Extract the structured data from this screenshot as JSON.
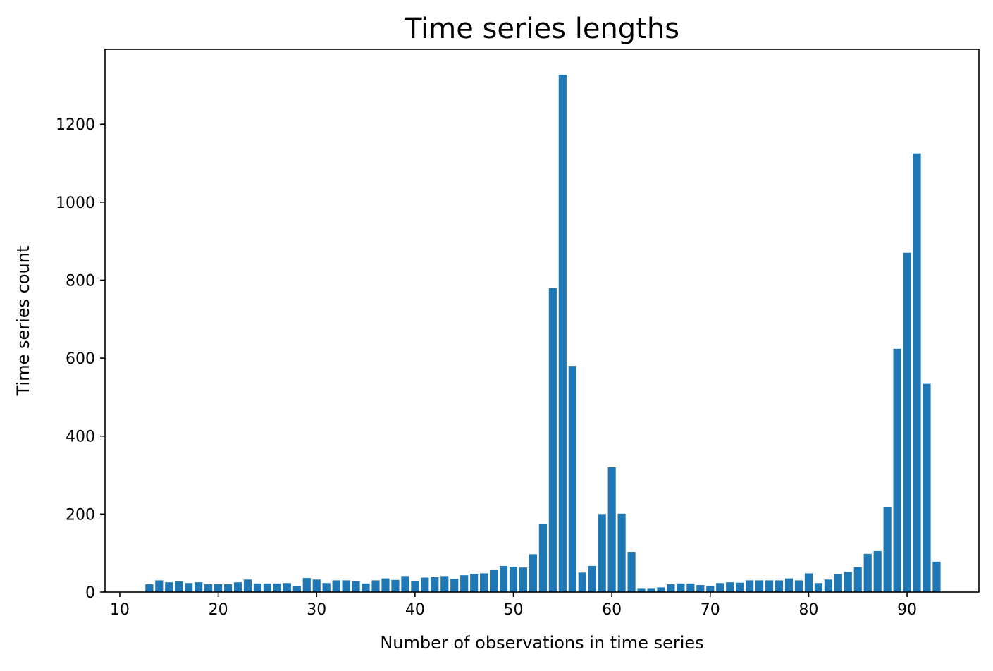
{
  "chart_data": {
    "type": "bar",
    "title": "Time series lengths",
    "xlabel": "Number of observations in time series",
    "ylabel": "Time series count",
    "xlim": [
      8.5,
      97.3
    ],
    "ylim": [
      0,
      1392
    ],
    "xticks": [
      10,
      20,
      30,
      40,
      50,
      60,
      70,
      80,
      90
    ],
    "yticks": [
      0,
      200,
      400,
      600,
      800,
      1000,
      1200
    ],
    "grid": false,
    "bar_color": "#1f77b4",
    "x": [
      13,
      14,
      15,
      16,
      17,
      18,
      19,
      20,
      21,
      22,
      23,
      24,
      25,
      26,
      27,
      28,
      29,
      30,
      31,
      32,
      33,
      34,
      35,
      36,
      37,
      38,
      39,
      40,
      41,
      42,
      43,
      44,
      45,
      46,
      47,
      48,
      49,
      50,
      51,
      52,
      53,
      54,
      55,
      56,
      57,
      58,
      59,
      60,
      61,
      62,
      63,
      64,
      65,
      66,
      67,
      68,
      69,
      70,
      71,
      72,
      73,
      74,
      75,
      76,
      77,
      78,
      79,
      80,
      81,
      82,
      83,
      84,
      85,
      86,
      87,
      88,
      89,
      90,
      91,
      92,
      93
    ],
    "values": [
      20,
      30,
      25,
      27,
      23,
      25,
      20,
      20,
      20,
      25,
      32,
      22,
      22,
      22,
      23,
      15,
      36,
      32,
      23,
      30,
      30,
      28,
      22,
      30,
      35,
      31,
      41,
      29,
      37,
      38,
      41,
      34,
      43,
      47,
      48,
      58,
      67,
      65,
      63,
      97,
      174,
      780,
      1327,
      580,
      50,
      67,
      200,
      320,
      201,
      103,
      10,
      10,
      12,
      20,
      22,
      22,
      18,
      15,
      23,
      25,
      24,
      30,
      30,
      30,
      30,
      35,
      30,
      48,
      23,
      32,
      46,
      52,
      64,
      98,
      105,
      217,
      624,
      870,
      1125,
      534,
      78
    ]
  }
}
